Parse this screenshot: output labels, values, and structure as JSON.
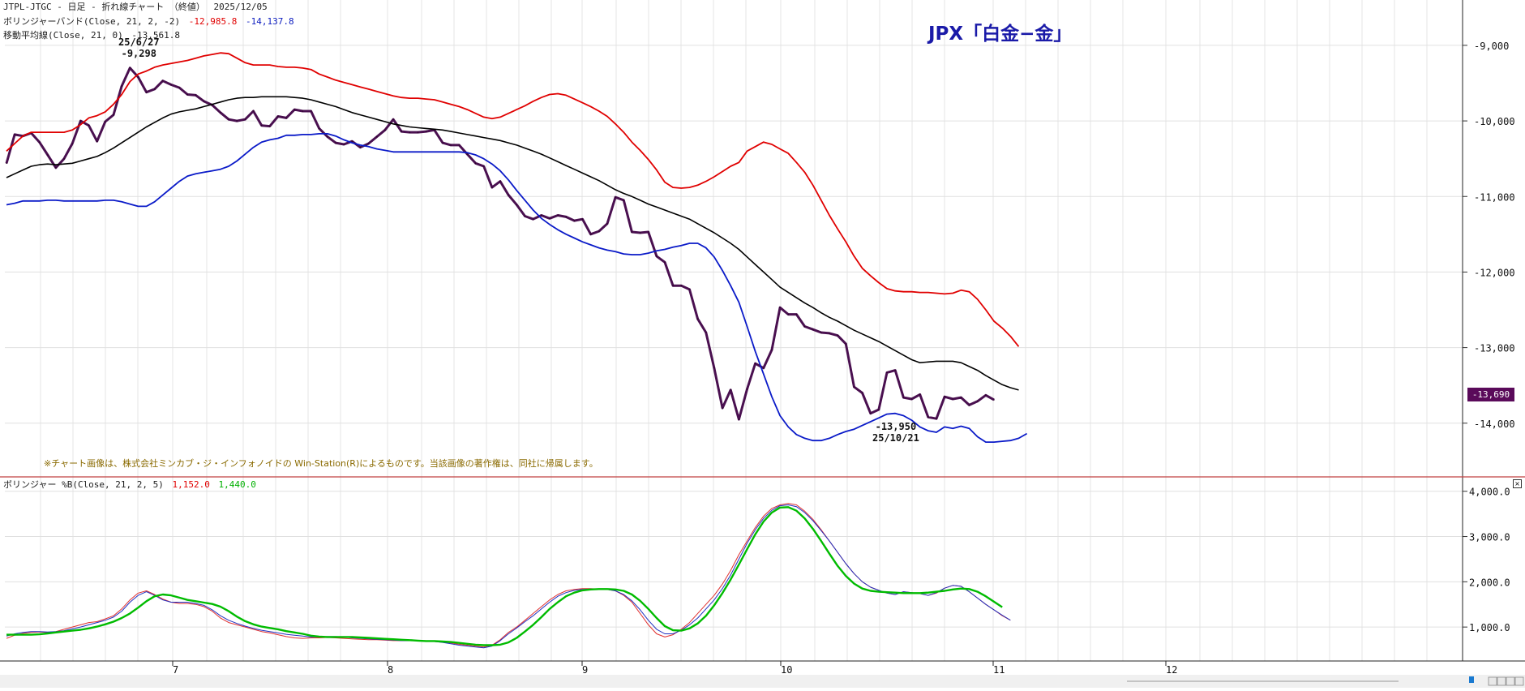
{
  "header": {
    "symbol_line": "JTPL-JTGC - 日足 - 折れ線チャート （終値）",
    "date": "2025/12/05",
    "bb_label": "ボリンジャーバンド(Close, 21, 2, -2)",
    "bb_upper_value": "-12,985.8",
    "bb_lower_value": "-14,137.8",
    "ma_label": "移動平均線(Close, 21, 0)",
    "ma_value": "-13,561.8"
  },
  "title": "JPX「白金−金」",
  "copyright": "※チャート画像は、株式会社ミンカブ・ジ・インフォノイドの Win-Station(R)によるものです。当該画像の著作権は、同社に帰属します。",
  "annotations": {
    "high_date": "25/6/27",
    "high_value": "-9,298",
    "low_value": "-13,950",
    "low_date": "25/10/21"
  },
  "last_price": "-13,690",
  "sub_header": {
    "label": "ボリンジャー %B(Close, 21, 2, 5)",
    "value1": "1,152.0",
    "value2": "1,440.0"
  },
  "colors": {
    "price": "#4a1050",
    "upper": "#e00000",
    "middle": "#000000",
    "lower": "#0a1ac8",
    "pb_fast": "#e03030",
    "pb_smooth": "#00bb00",
    "pb_blue": "#2030c0"
  },
  "chart_data": [
    {
      "type": "line",
      "title": "JPX「白金−金」",
      "x_ticks": [
        "7",
        "8",
        "9",
        "10",
        "11",
        "12"
      ],
      "y_ticks": [
        -9000,
        -10000,
        -11000,
        -12000,
        -13000,
        -14000
      ],
      "y_tick_labels": [
        "-9,000",
        "-10,000",
        "-11,000",
        "-12,000",
        "-13,000",
        "-14,000"
      ],
      "ylim": [
        -14700,
        -8400
      ],
      "grid": true,
      "series": [
        {
          "name": "Close",
          "role": "price",
          "values": [
            -10560,
            -10180,
            -10200,
            -10160,
            -10280,
            -10450,
            -10620,
            -10500,
            -10300,
            -10000,
            -10060,
            -10270,
            -10010,
            -9920,
            -9540,
            -9298,
            -9420,
            -9620,
            -9580,
            -9470,
            -9520,
            -9560,
            -9650,
            -9660,
            -9740,
            -9790,
            -9890,
            -9980,
            -10000,
            -9980,
            -9870,
            -10060,
            -10070,
            -9940,
            -9960,
            -9850,
            -9870,
            -9870,
            -10100,
            -10210,
            -10290,
            -10310,
            -10270,
            -10350,
            -10300,
            -10210,
            -10120,
            -9980,
            -10140,
            -10150,
            -10150,
            -10140,
            -10120,
            -10290,
            -10320,
            -10320,
            -10440,
            -10560,
            -10600,
            -10880,
            -10800,
            -10980,
            -11110,
            -11260,
            -11300,
            -11250,
            -11290,
            -11250,
            -11270,
            -11320,
            -11300,
            -11500,
            -11460,
            -11360,
            -11010,
            -11050,
            -11470,
            -11480,
            -11470,
            -11790,
            -11870,
            -12180,
            -12180,
            -12230,
            -12620,
            -12800,
            -13270,
            -13800,
            -13560,
            -13950,
            -13550,
            -13210,
            -13270,
            -13030,
            -12470,
            -12560,
            -12560,
            -12720,
            -12760,
            -12800,
            -12810,
            -12840,
            -12950,
            -13520,
            -13600,
            -13870,
            -13820,
            -13330,
            -13300,
            -13660,
            -13680,
            -13620,
            -13920,
            -13940,
            -13650,
            -13680,
            -13660,
            -13760,
            -13710,
            -13630,
            -13690
          ]
        },
        {
          "name": "Upper band",
          "role": "upper",
          "values": [
            -10400,
            -10300,
            -10200,
            -10150,
            -10150,
            -10150,
            -10150,
            -10150,
            -10120,
            -10050,
            -9960,
            -9930,
            -9880,
            -9780,
            -9650,
            -9480,
            -9380,
            -9340,
            -9290,
            -9260,
            -9240,
            -9220,
            -9200,
            -9170,
            -9140,
            -9120,
            -9100,
            -9110,
            -9170,
            -9230,
            -9260,
            -9260,
            -9260,
            -9280,
            -9290,
            -9290,
            -9300,
            -9320,
            -9380,
            -9420,
            -9460,
            -9490,
            -9520,
            -9550,
            -9580,
            -9610,
            -9640,
            -9670,
            -9690,
            -9700,
            -9700,
            -9710,
            -9720,
            -9750,
            -9780,
            -9810,
            -9850,
            -9900,
            -9950,
            -9970,
            -9950,
            -9900,
            -9850,
            -9800,
            -9740,
            -9690,
            -9650,
            -9640,
            -9660,
            -9710,
            -9760,
            -9810,
            -9870,
            -9940,
            -10040,
            -10150,
            -10280,
            -10390,
            -10510,
            -10650,
            -10810,
            -10880,
            -10890,
            -10880,
            -10850,
            -10800,
            -10740,
            -10670,
            -10600,
            -10550,
            -10400,
            -10340,
            -10280,
            -10310,
            -10370,
            -10430,
            -10550,
            -10680,
            -10850,
            -11050,
            -11250,
            -11430,
            -11600,
            -11790,
            -11950,
            -12050,
            -12140,
            -12220,
            -12250,
            -12260,
            -12260,
            -12270,
            -12270,
            -12280,
            -12290,
            -12280,
            -12240,
            -12260,
            -12360,
            -12500,
            -12650,
            -12740,
            -12850,
            -12985.8
          ]
        },
        {
          "name": "Moving average",
          "role": "middle",
          "values": [
            -10750,
            -10700,
            -10650,
            -10600,
            -10580,
            -10570,
            -10580,
            -10570,
            -10560,
            -10530,
            -10500,
            -10470,
            -10420,
            -10360,
            -10290,
            -10220,
            -10150,
            -10080,
            -10020,
            -9960,
            -9910,
            -9880,
            -9860,
            -9840,
            -9810,
            -9780,
            -9750,
            -9720,
            -9700,
            -9690,
            -9690,
            -9680,
            -9680,
            -9680,
            -9680,
            -9690,
            -9700,
            -9720,
            -9750,
            -9780,
            -9810,
            -9850,
            -9890,
            -9920,
            -9950,
            -9980,
            -10010,
            -10040,
            -10060,
            -10080,
            -10090,
            -10100,
            -10110,
            -10120,
            -10140,
            -10160,
            -10180,
            -10200,
            -10220,
            -10240,
            -10260,
            -10290,
            -10320,
            -10360,
            -10400,
            -10440,
            -10490,
            -10540,
            -10590,
            -10640,
            -10690,
            -10740,
            -10790,
            -10850,
            -10910,
            -10960,
            -11000,
            -11050,
            -11100,
            -11140,
            -11180,
            -11220,
            -11260,
            -11300,
            -11360,
            -11420,
            -11480,
            -11550,
            -11620,
            -11700,
            -11800,
            -11900,
            -12000,
            -12100,
            -12200,
            -12270,
            -12340,
            -12410,
            -12470,
            -12540,
            -12600,
            -12650,
            -12710,
            -12770,
            -12820,
            -12870,
            -12920,
            -12980,
            -13040,
            -13100,
            -13160,
            -13200,
            -13190,
            -13180,
            -13180,
            -13180,
            -13200,
            -13250,
            -13300,
            -13370,
            -13430,
            -13490,
            -13530,
            -13561.8
          ]
        },
        {
          "name": "Lower band",
          "role": "lower",
          "values": [
            -11110,
            -11090,
            -11060,
            -11060,
            -11060,
            -11050,
            -11050,
            -11060,
            -11060,
            -11060,
            -11060,
            -11060,
            -11050,
            -11050,
            -11070,
            -11100,
            -11130,
            -11130,
            -11070,
            -10980,
            -10890,
            -10800,
            -10730,
            -10700,
            -10680,
            -10660,
            -10640,
            -10600,
            -10530,
            -10440,
            -10350,
            -10280,
            -10250,
            -10230,
            -10190,
            -10190,
            -10180,
            -10180,
            -10170,
            -10170,
            -10200,
            -10250,
            -10290,
            -10320,
            -10340,
            -10370,
            -10390,
            -10410,
            -10410,
            -10410,
            -10410,
            -10410,
            -10410,
            -10410,
            -10410,
            -10410,
            -10420,
            -10450,
            -10500,
            -10570,
            -10660,
            -10780,
            -10920,
            -11050,
            -11180,
            -11290,
            -11370,
            -11440,
            -11500,
            -11550,
            -11600,
            -11640,
            -11680,
            -11710,
            -11730,
            -11760,
            -11770,
            -11770,
            -11750,
            -11720,
            -11700,
            -11670,
            -11650,
            -11620,
            -11620,
            -11680,
            -11800,
            -11980,
            -12180,
            -12400,
            -12720,
            -13050,
            -13350,
            -13650,
            -13900,
            -14050,
            -14150,
            -14200,
            -14230,
            -14230,
            -14200,
            -14150,
            -14110,
            -14080,
            -14030,
            -13980,
            -13930,
            -13880,
            -13870,
            -13900,
            -13960,
            -14050,
            -14100,
            -14120,
            -14050,
            -14070,
            -14040,
            -14070,
            -14180,
            -14250,
            -14250,
            -14240,
            -14230,
            -14200,
            -14137.8
          ]
        }
      ]
    },
    {
      "type": "line",
      "title": "ボリンジャー %B(Close, 21, 2, 5)",
      "x_ticks": [
        "7",
        "8",
        "9",
        "10",
        "11",
        "12"
      ],
      "y_ticks": [
        1000,
        2000,
        3000,
        4000
      ],
      "y_tick_labels": [
        "1,000.0",
        "2,000.0",
        "3,000.0",
        "4,000.0"
      ],
      "ylim": [
        250,
        4300
      ],
      "grid": true,
      "series": [
        {
          "name": "%B",
          "role": "pb_fast",
          "values": [
            750,
            820,
            860,
            880,
            890,
            880,
            900,
            950,
            1000,
            1050,
            1100,
            1120,
            1180,
            1250,
            1400,
            1600,
            1750,
            1800,
            1720,
            1620,
            1550,
            1520,
            1520,
            1500,
            1450,
            1350,
            1200,
            1100,
            1050,
            1000,
            950,
            900,
            870,
            830,
            790,
            760,
            750,
            760,
            760,
            770,
            760,
            750,
            740,
            730,
            720,
            720,
            710,
            700,
            700,
            700,
            700,
            690,
            680,
            670,
            650,
            620,
            600,
            580,
            560,
            600,
            720,
            880,
            1000,
            1150,
            1300,
            1450,
            1600,
            1720,
            1800,
            1830,
            1850,
            1850,
            1840,
            1830,
            1800,
            1700,
            1550,
            1300,
            1050,
            850,
            780,
            830,
            950,
            1100,
            1300,
            1500,
            1700,
            1950,
            2250,
            2600,
            2900,
            3200,
            3450,
            3620,
            3700,
            3730,
            3700,
            3560,
            3380,
            3150,
            2900,
            2650,
            2400,
            2180,
            2000,
            1880,
            1810,
            1750,
            1720,
            1780,
            1760,
            1740,
            1700,
            1750,
            1860,
            1920,
            1900,
            1780,
            1640,
            1500,
            1380,
            1250,
            1152
          ]
        },
        {
          "name": "%B blue",
          "role": "pb_blue",
          "values": [
            800,
            850,
            880,
            900,
            900,
            890,
            900,
            920,
            960,
            1000,
            1050,
            1100,
            1150,
            1220,
            1350,
            1550,
            1700,
            1780,
            1700,
            1600,
            1550,
            1550,
            1550,
            1520,
            1480,
            1380,
            1250,
            1150,
            1080,
            1020,
            970,
            930,
            900,
            870,
            840,
            820,
            800,
            780,
            780,
            790,
            790,
            780,
            760,
            750,
            740,
            730,
            720,
            710,
            700,
            700,
            700,
            690,
            680,
            660,
            630,
            600,
            580,
            560,
            540,
            580,
            700,
            850,
            980,
            1120,
            1250,
            1400,
            1550,
            1680,
            1760,
            1810,
            1830,
            1840,
            1840,
            1830,
            1800,
            1720,
            1580,
            1380,
            1150,
            950,
            850,
            850,
            930,
            1050,
            1200,
            1400,
            1600,
            1850,
            2150,
            2500,
            2850,
            3150,
            3400,
            3580,
            3680,
            3700,
            3660,
            3530,
            3350,
            3130,
            2900,
            2650,
            2400,
            2180,
            2000,
            1880,
            1810,
            1750,
            1720,
            1780,
            1760,
            1740,
            1700,
            1760,
            1860,
            1920,
            1900,
            1780,
            1640,
            1500,
            1380,
            1260,
            1152
          ]
        },
        {
          "name": "%B smoothed",
          "role": "pb_smooth",
          "values": [
            830,
            830,
            830,
            830,
            840,
            860,
            880,
            900,
            920,
            940,
            970,
            1010,
            1060,
            1120,
            1200,
            1300,
            1430,
            1570,
            1680,
            1720,
            1700,
            1650,
            1600,
            1570,
            1540,
            1510,
            1450,
            1350,
            1230,
            1130,
            1060,
            1010,
            980,
            950,
            910,
            880,
            850,
            810,
            790,
            780,
            780,
            780,
            780,
            770,
            760,
            750,
            740,
            730,
            720,
            710,
            700,
            690,
            690,
            680,
            670,
            650,
            630,
            610,
            600,
            600,
            610,
            660,
            760,
            900,
            1050,
            1220,
            1400,
            1550,
            1680,
            1760,
            1810,
            1830,
            1840,
            1840,
            1830,
            1800,
            1720,
            1580,
            1400,
            1200,
            1020,
            930,
            920,
            970,
            1080,
            1250,
            1480,
            1750,
            2050,
            2380,
            2720,
            3050,
            3330,
            3530,
            3640,
            3650,
            3570,
            3400,
            3170,
            2900,
            2620,
            2350,
            2130,
            1960,
            1850,
            1800,
            1780,
            1770,
            1760,
            1750,
            1750,
            1750,
            1760,
            1780,
            1800,
            1830,
            1850,
            1840,
            1780,
            1680,
            1560,
            1440
          ]
        }
      ]
    }
  ]
}
